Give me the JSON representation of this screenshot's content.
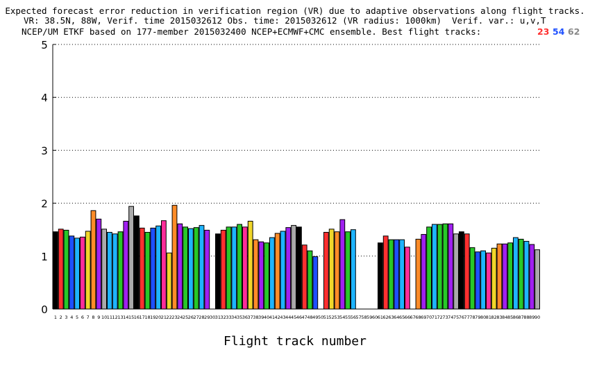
{
  "title": {
    "line1": "Expected forecast error reduction in verification region (VR) due to adaptive observations along flight tracks.",
    "line2": "VR: 38.5N, 88W, Verif. time 2015032612 Obs. time: 2015032612 (VR radius: 1000km)  Verif. var.: u,v,T",
    "line3": "NCEP/UM ETKF based on 177-member 2015032400 NCEP+ECMWF+CMC ensemble. Best flight tracks:"
  },
  "best_tracks": [
    {
      "value": "23",
      "color": "#ff3030"
    },
    {
      "value": "54",
      "color": "#1e50ff"
    },
    {
      "value": "62",
      "color": "#888888"
    }
  ],
  "colors": [
    "#000000",
    "#ff3030",
    "#28c828",
    "#1e50ff",
    "#1eb4ff",
    "#ff2c9a",
    "#f0d62a",
    "#ff8c28",
    "#a020f0",
    "#aaaaaa"
  ],
  "chart_data": {
    "type": "bar",
    "xlabel": "Flight track number",
    "ylabel": "",
    "ylim": [
      0,
      5
    ],
    "yticks": [
      0,
      1,
      2,
      3,
      4,
      5
    ],
    "grid": true,
    "categories": [
      1,
      2,
      3,
      4,
      5,
      6,
      7,
      8,
      9,
      10,
      11,
      12,
      13,
      14,
      15,
      16,
      17,
      18,
      19,
      20,
      21,
      22,
      23,
      24,
      25,
      26,
      27,
      28,
      29,
      30,
      31,
      32,
      33,
      34,
      35,
      36,
      37,
      38,
      39,
      40,
      41,
      42,
      43,
      44,
      45,
      46,
      47,
      48,
      49,
      50,
      51,
      52,
      53,
      54,
      55,
      56,
      57,
      58,
      59,
      60,
      61,
      62,
      63,
      64,
      65,
      66,
      67,
      68,
      69,
      70,
      71,
      72,
      73,
      74,
      75,
      76,
      77,
      78,
      79,
      80,
      81,
      82,
      83,
      84,
      85,
      86,
      87,
      88,
      89,
      90
    ],
    "values": [
      1.46,
      1.51,
      1.49,
      1.38,
      1.34,
      1.36,
      1.47,
      1.86,
      1.7,
      1.51,
      1.45,
      1.42,
      1.46,
      1.66,
      1.94,
      1.76,
      1.53,
      1.45,
      1.53,
      1.57,
      1.67,
      1.06,
      1.96,
      1.61,
      1.55,
      1.52,
      1.54,
      1.58,
      1.49,
      0,
      1.42,
      1.49,
      1.55,
      1.55,
      1.6,
      1.55,
      1.66,
      1.31,
      1.27,
      1.25,
      1.35,
      1.43,
      1.47,
      1.54,
      1.58,
      1.55,
      1.21,
      1.1,
      0.99,
      0,
      1.45,
      1.51,
      1.46,
      1.69,
      1.46,
      1.5,
      0,
      0,
      0,
      0,
      1.25,
      1.38,
      1.31,
      1.31,
      1.31,
      1.17,
      0,
      1.32,
      1.41,
      1.55,
      1.6,
      1.6,
      1.61,
      1.61,
      1.42,
      1.46,
      1.42,
      1.16,
      1.08,
      1.1,
      1.06,
      1.15,
      1.23,
      1.23,
      1.25,
      1.35,
      1.32,
      1.28,
      1.22,
      1.12
    ],
    "bar_colors": [
      0,
      1,
      2,
      3,
      4,
      5,
      6,
      7,
      8,
      9,
      4,
      4,
      2,
      8,
      9,
      0,
      1,
      2,
      3,
      4,
      5,
      6,
      7,
      8,
      2,
      4,
      2,
      4,
      8,
      0,
      0,
      1,
      2,
      4,
      2,
      5,
      6,
      7,
      8,
      2,
      4,
      7,
      4,
      8,
      9,
      0,
      1,
      2,
      3,
      0,
      1,
      6,
      7,
      8,
      2,
      4,
      0,
      0,
      0,
      0,
      0,
      1,
      2,
      3,
      4,
      5,
      6,
      7,
      8,
      2,
      4,
      2,
      2,
      8,
      9,
      0,
      1,
      2,
      3,
      4,
      5,
      6,
      7,
      8,
      2,
      4,
      2,
      4,
      8,
      9
    ]
  }
}
